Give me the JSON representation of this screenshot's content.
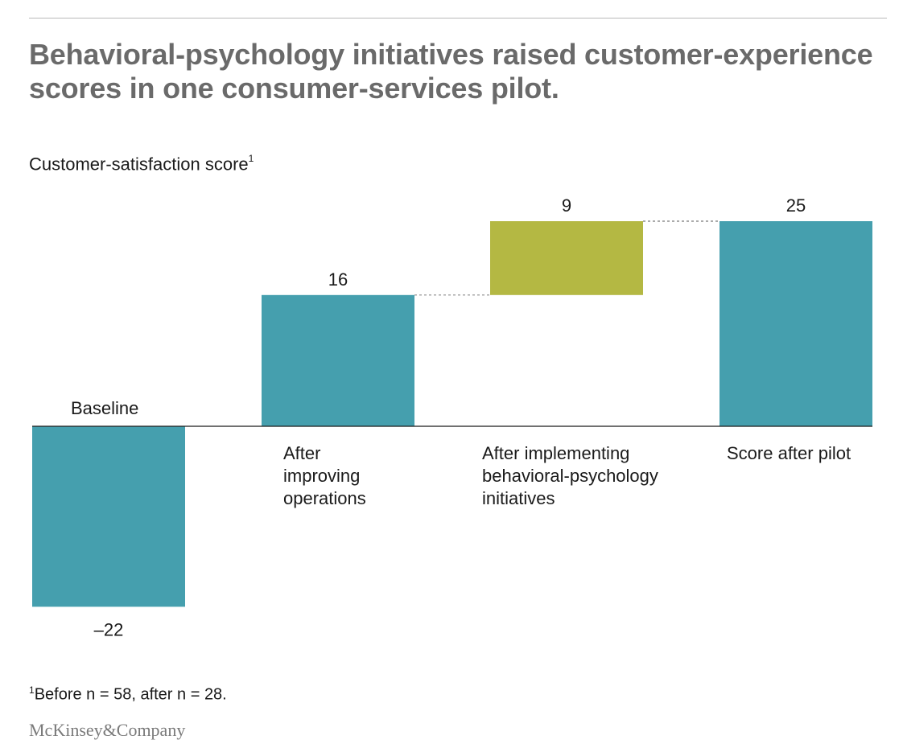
{
  "header": {
    "title": "Behavioral-psychology initiatives raised customer-experience scores in one consumer-services pilot.",
    "subtitle": "Customer-satisfaction score",
    "subtitle_marker": "1"
  },
  "footnote": {
    "marker": "1",
    "text": "Before n = 58, after n = 28."
  },
  "logo": {
    "text": "McKinsey&Company"
  },
  "colors": {
    "bar_teal": "#459fae",
    "bar_olive": "#b4b843",
    "connector": "#8a8a8a",
    "axis": "#1a1a1a"
  },
  "chart_data": {
    "type": "bar",
    "variant": "waterfall",
    "ylabel": "Customer-satisfaction score",
    "ylim": [
      -22,
      25
    ],
    "categories": [
      {
        "label": [
          "Baseline"
        ],
        "value_label": "–22",
        "start": 0,
        "end": -22,
        "color": "#459fae"
      },
      {
        "label": [
          "After",
          "improving",
          "operations"
        ],
        "value_label": "16",
        "start": 0,
        "end": 16,
        "color": "#459fae"
      },
      {
        "label": [
          "After implementing",
          "behavioral-psychology",
          "initiatives"
        ],
        "value_label": "9",
        "start": 16,
        "end": 25,
        "color": "#b4b843"
      },
      {
        "label": [
          "Score after pilot"
        ],
        "value_label": "25",
        "start": 0,
        "end": 25,
        "color": "#459fae"
      }
    ]
  }
}
